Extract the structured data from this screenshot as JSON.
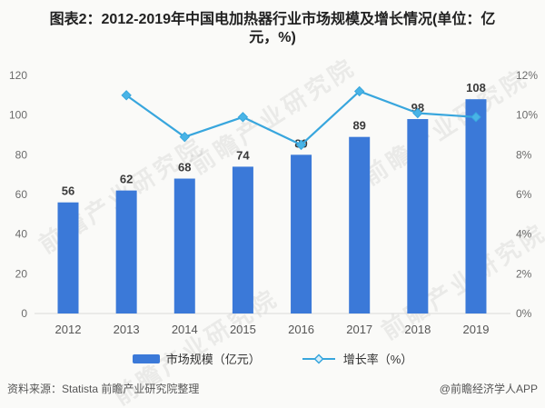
{
  "header": {
    "title": "图表2：2012-2019年中国电加热器行业市场规模及增长情况(单位：亿元，%)"
  },
  "chart_data": {
    "type": "bar",
    "subtype": "bar-line-combo",
    "categories": [
      "2012",
      "2013",
      "2014",
      "2015",
      "2016",
      "2017",
      "2018",
      "2019"
    ],
    "series": [
      {
        "name": "市场规模（亿元）",
        "type": "bar",
        "axis": "left",
        "values": [
          56,
          62,
          68,
          74,
          80,
          89,
          98,
          108
        ],
        "color": "#3b79d8"
      },
      {
        "name": "增长率（%）",
        "type": "line",
        "axis": "right",
        "values": [
          null,
          11.0,
          8.9,
          9.9,
          8.5,
          11.2,
          10.1,
          9.9
        ],
        "color": "#38a6dd",
        "marker": "diamond",
        "marker_color": "#49b4e6"
      }
    ],
    "left_axis": {
      "ticks": [
        0,
        20,
        40,
        60,
        80,
        100,
        120
      ],
      "range": [
        0,
        120
      ]
    },
    "right_axis": {
      "ticks": [
        "0%",
        "2%",
        "4%",
        "6%",
        "8%",
        "10%",
        "12%"
      ],
      "range": [
        0,
        12
      ]
    },
    "grid": false,
    "legend_position": "bottom",
    "baseline_color": "#d9d9d9",
    "axis_text_color": "#6b6b6b",
    "value_label_color": "#3a3a3a",
    "x_label_color": "#555555"
  },
  "legend": {
    "items": [
      {
        "label": "市场规模（亿元）"
      },
      {
        "label": "增长率（%）"
      }
    ]
  },
  "footer": {
    "source": "资料来源：Statista 前瞻产业研究院整理",
    "credit": "@前瞻经济学人APP"
  },
  "watermark": {
    "text": "前瞻产业研究院"
  }
}
